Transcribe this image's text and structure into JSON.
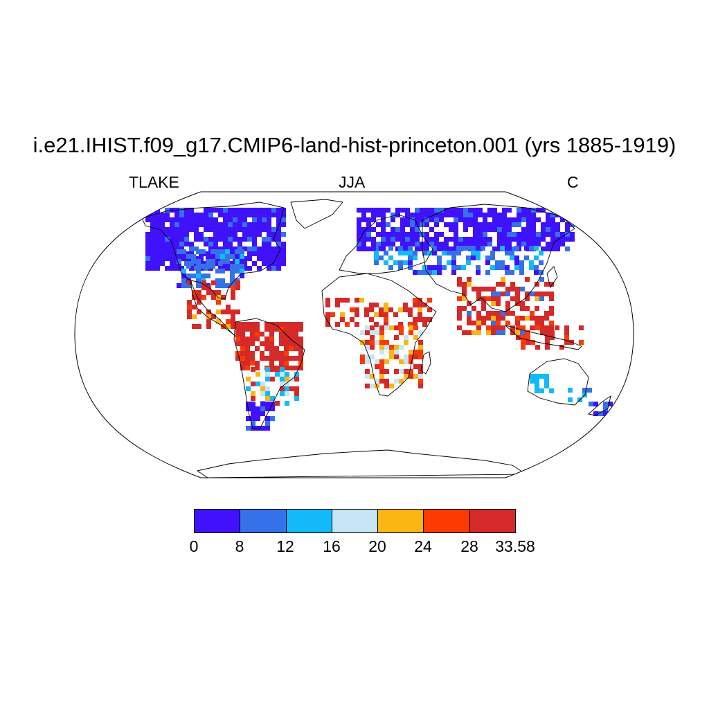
{
  "title": "i.e21.IHIST.f09_g17.CMIP6-land-hist-princeton.001 (yrs 1885-1919)",
  "variable": "TLAKE",
  "season": "JJA",
  "units": "C",
  "projection": "Robinson",
  "colorbar": {
    "colors": [
      "#4011fb",
      "#3571e8",
      "#12baf9",
      "#c7e6f5",
      "#fbb614",
      "#fc3a02",
      "#d42a2a"
    ],
    "labels": [
      "0",
      "8",
      "12",
      "16",
      "20",
      "24",
      "28",
      "33.58"
    ]
  },
  "regions": [
    {
      "name": "canada-north",
      "color": "#4011fb"
    },
    {
      "name": "usa-east",
      "color": "#3571e8"
    },
    {
      "name": "mexico-central-america",
      "color": "#d42a2a"
    },
    {
      "name": "amazon",
      "color": "#d42a2a"
    },
    {
      "name": "patagonia",
      "color": "#4011fb"
    },
    {
      "name": "sahel",
      "color": "#d42a2a"
    },
    {
      "name": "europe-north-russia",
      "color": "#4011fb"
    },
    {
      "name": "india-southeast-asia",
      "color": "#d42a2a"
    },
    {
      "name": "australia-west",
      "color": "#12baf9"
    }
  ]
}
